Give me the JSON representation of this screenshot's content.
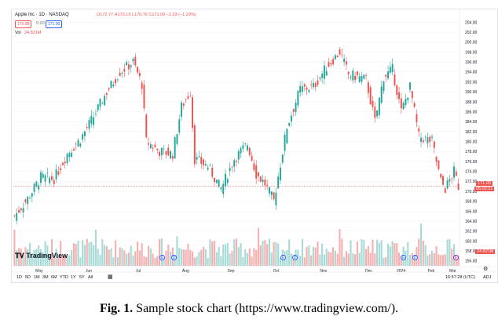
{
  "header": {
    "symbol_title": "Apple Inc · 1D · NASDAQ",
    "ohlc": "O172.77 H173.19 L170.76 C171.00 −2.23 (−1.29%)",
    "bid": "170.99",
    "bid_sep": "0.00",
    "ask": "171.00",
    "vol_label": "Vol",
    "vol_value": "24.821M"
  },
  "price_tags": {
    "last": "171.00",
    "countdown": "05:02:31",
    "vol": "24.821M"
  },
  "branding": {
    "logo_text": "TradingView"
  },
  "events": [
    "E",
    "D",
    "E",
    "D",
    "E",
    "D",
    "E",
    "D",
    "F"
  ],
  "timeframes": [
    "1D",
    "5D",
    "1M",
    "3M",
    "6M",
    "YTD",
    "1Y",
    "5Y",
    "All"
  ],
  "footer": {
    "clock": "16:57:28 (UTC)",
    "adj": "ADJ"
  },
  "caption": {
    "fig": "Fig. 1.",
    "text": " Sample stock chart (https://www.tradingview.com/)."
  },
  "colors": {
    "up": "#26a69a",
    "down": "#ef5350",
    "vol_up": "#9fd6d1",
    "vol_down": "#f4a7a6",
    "grid": "#f0f3fa"
  },
  "chart_data": {
    "type": "candlestick",
    "title": "Apple Inc · 1D · NASDAQ",
    "x_tick_labels": [
      "May",
      "Jun",
      "Jul",
      "Aug",
      "Sep",
      "Oct",
      "Nov",
      "Dec",
      "2024",
      "Feb",
      "Mar"
    ],
    "y_tick_labels": [
      "156.00",
      "158.00",
      "160.00",
      "162.00",
      "164.00",
      "166.00",
      "168.00",
      "170.00",
      "172.00",
      "174.00",
      "176.00",
      "178.00",
      "180.00",
      "182.00",
      "184.00",
      "186.00",
      "188.00",
      "190.00",
      "192.00",
      "194.00",
      "196.00",
      "198.00",
      "200.00",
      "202.00",
      "204.00"
    ],
    "ylim": [
      155,
      205
    ],
    "close_anchors": [
      [
        0,
        165.0
      ],
      [
        6,
        168.5
      ],
      [
        12,
        172.8
      ],
      [
        18,
        172.5
      ],
      [
        24,
        177.5
      ],
      [
        30,
        180.5
      ],
      [
        36,
        185.0
      ],
      [
        42,
        190.0
      ],
      [
        48,
        194.0
      ],
      [
        54,
        196.0
      ],
      [
        58,
        191.5
      ],
      [
        60,
        180.0
      ],
      [
        66,
        178.0
      ],
      [
        72,
        177.5
      ],
      [
        76,
        187.0
      ],
      [
        80,
        190.0
      ],
      [
        82,
        176.5
      ],
      [
        88,
        175.0
      ],
      [
        94,
        170.5
      ],
      [
        100,
        176.5
      ],
      [
        106,
        179.5
      ],
      [
        110,
        173.5
      ],
      [
        114,
        171.5
      ],
      [
        118,
        168.0
      ],
      [
        124,
        183.0
      ],
      [
        130,
        190.5
      ],
      [
        136,
        191.0
      ],
      [
        142,
        195.0
      ],
      [
        148,
        198.0
      ],
      [
        152,
        193.5
      ],
      [
        160,
        192.5
      ],
      [
        164,
        184.0
      ],
      [
        168,
        193.0
      ],
      [
        172,
        194.5
      ],
      [
        176,
        186.0
      ],
      [
        180,
        191.0
      ],
      [
        184,
        181.0
      ],
      [
        190,
        180.0
      ],
      [
        194,
        172.0
      ],
      [
        196,
        170.5
      ],
      [
        200,
        174.0
      ],
      [
        202,
        171.0
      ]
    ],
    "n_candles": 203,
    "volume_scale_note": "volume bars at bottom, relative only"
  }
}
